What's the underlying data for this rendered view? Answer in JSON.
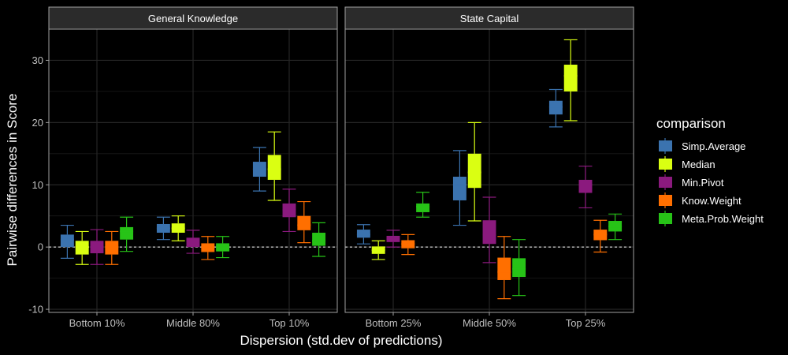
{
  "chart_data": {
    "type": "box",
    "ylabel": "Pairwise differences in Score",
    "xlabel": "Dispersion (std.dev of predictions)",
    "ylim": [
      -10.5,
      35
    ],
    "yticks": [
      -10,
      0,
      10,
      20,
      30
    ],
    "grid": true,
    "reference_line": 0,
    "legend": {
      "title": "comparison",
      "position": "right",
      "entries": [
        {
          "name": "Simp.Average",
          "color": "#3B73AF"
        },
        {
          "name": "Median",
          "color": "#DAFF12"
        },
        {
          "name": "Min.Pivot",
          "color": "#8B1A7E"
        },
        {
          "name": "Know.Weight",
          "color": "#FF6F00"
        },
        {
          "name": "Meta.Prob.Weight",
          "color": "#27C317"
        }
      ]
    },
    "facets": [
      {
        "title": "General Knowledge",
        "categories": [
          "Bottom 10%",
          "Middle 80%",
          "Top 10%"
        ],
        "groups": [
          [
            {
              "series": "Simp.Average",
              "min": -1.8,
              "q1": 0,
              "median": 1.2,
              "q3": 2,
              "max": 3.5
            },
            {
              "series": "Median",
              "min": -2.8,
              "q1": -1.2,
              "median": 0,
              "q3": 1,
              "max": 2.5
            },
            {
              "series": "Min.Pivot",
              "min": -2.8,
              "q1": -1,
              "median": 0,
              "q3": 1,
              "max": 2.8
            },
            {
              "series": "Know.Weight",
              "min": -2.8,
              "q1": -1.2,
              "median": 0,
              "q3": 1,
              "max": 2.5
            },
            {
              "series": "Meta.Prob.Weight",
              "min": -0.7,
              "q1": 1.2,
              "median": 2.5,
              "q3": 3.2,
              "max": 4.8
            }
          ],
          [
            {
              "series": "Simp.Average",
              "min": 1.2,
              "q1": 2.3,
              "median": 3,
              "q3": 3.7,
              "max": 4.8
            },
            {
              "series": "Median",
              "min": 1,
              "q1": 2.3,
              "median": 3,
              "q3": 3.8,
              "max": 5
            },
            {
              "series": "Min.Pivot",
              "min": -1,
              "q1": 0,
              "median": 1,
              "q3": 1.5,
              "max": 2.7
            },
            {
              "series": "Know.Weight",
              "min": -2,
              "q1": -0.8,
              "median": 0,
              "q3": 0.6,
              "max": 1.7
            },
            {
              "series": "Meta.Prob.Weight",
              "min": -1.7,
              "q1": -0.7,
              "median": 0,
              "q3": 0.6,
              "max": 1.7
            }
          ],
          [
            {
              "series": "Simp.Average",
              "min": 9,
              "q1": 11.3,
              "median": 12.5,
              "q3": 13.7,
              "max": 16
            },
            {
              "series": "Median",
              "min": 7.5,
              "q1": 10.8,
              "median": 12.5,
              "q3": 14.8,
              "max": 18.5
            },
            {
              "series": "Min.Pivot",
              "min": 2.5,
              "q1": 4.8,
              "median": 6,
              "q3": 7,
              "max": 9.3
            },
            {
              "series": "Know.Weight",
              "min": 0.7,
              "q1": 2.7,
              "median": 3.5,
              "q3": 5,
              "max": 7.3
            },
            {
              "series": "Meta.Prob.Weight",
              "min": -1.5,
              "q1": 0.2,
              "median": 1,
              "q3": 2.3,
              "max": 3.9
            }
          ]
        ]
      },
      {
        "title": "State Capital",
        "categories": [
          "Bottom 25%",
          "Middle 50%",
          "Top 25%"
        ],
        "groups": [
          [
            {
              "series": "Simp.Average",
              "min": 0.5,
              "q1": 1.5,
              "median": 2,
              "q3": 2.8,
              "max": 3.6
            },
            {
              "series": "Median",
              "min": -2,
              "q1": -1.1,
              "median": -0.5,
              "q3": 0.1,
              "max": 1
            },
            {
              "series": "Min.Pivot",
              "min": 0,
              "q1": 0.8,
              "median": 1.3,
              "q3": 1.8,
              "max": 2.7
            },
            {
              "series": "Know.Weight",
              "min": -1.2,
              "q1": -0.2,
              "median": 0.5,
              "q3": 1.1,
              "max": 2
            },
            {
              "series": "Meta.Prob.Weight",
              "min": 4.8,
              "q1": 5.6,
              "median": 6.5,
              "q3": 7,
              "max": 8.8
            }
          ],
          [
            {
              "series": "Simp.Average",
              "min": 3.5,
              "q1": 7.5,
              "median": 10,
              "q3": 11.3,
              "max": 15.5
            },
            {
              "series": "Median",
              "min": 4.2,
              "q1": 9.5,
              "median": 12,
              "q3": 15,
              "max": 20
            },
            {
              "series": "Min.Pivot",
              "min": -2.5,
              "q1": 0.5,
              "median": 2,
              "q3": 4.3,
              "max": 8
            },
            {
              "series": "Know.Weight",
              "min": -8.3,
              "q1": -5.3,
              "median": -4,
              "q3": -1.7,
              "max": 1.7
            },
            {
              "series": "Meta.Prob.Weight",
              "min": -7.8,
              "q1": -4.8,
              "median": -3.5,
              "q3": -1.8,
              "max": 1.2
            }
          ],
          [
            {
              "series": "Simp.Average",
              "min": 19.3,
              "q1": 21.3,
              "median": 22.5,
              "q3": 23.5,
              "max": 25.3
            },
            {
              "series": "Median",
              "min": 20.3,
              "q1": 25,
              "median": 27.5,
              "q3": 29.3,
              "max": 33.3
            },
            {
              "series": "Min.Pivot",
              "min": 6.3,
              "q1": 8.7,
              "median": 10,
              "q3": 10.8,
              "max": 13
            },
            {
              "series": "Know.Weight",
              "min": -0.8,
              "q1": 1.1,
              "median": 2,
              "q3": 2.8,
              "max": 4.3
            },
            {
              "series": "Meta.Prob.Weight",
              "min": 1.2,
              "q1": 2.5,
              "median": 3.3,
              "q3": 4.2,
              "max": 5.3
            }
          ]
        ]
      }
    ]
  }
}
